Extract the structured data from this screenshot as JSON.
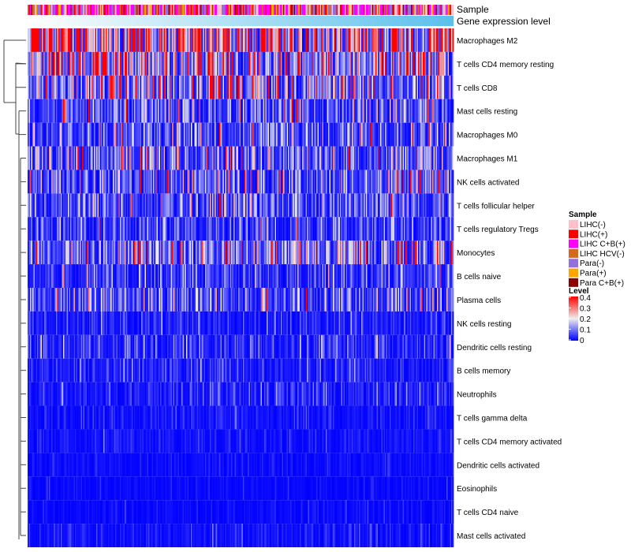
{
  "chart_data": {
    "type": "heatmap",
    "title": "",
    "annotations": [
      {
        "name": "Sample"
      },
      {
        "name": "Gene expression level",
        "color": "#5bc0eb"
      }
    ],
    "rows": [
      {
        "label": "Macrophages M2",
        "mean": 0.32
      },
      {
        "label": "T cells CD4 memory resting",
        "mean": 0.19
      },
      {
        "label": "T cells CD8",
        "mean": 0.14
      },
      {
        "label": "Mast cells resting",
        "mean": 0.08
      },
      {
        "label": "Macrophages M0",
        "mean": 0.08
      },
      {
        "label": "Macrophages M1",
        "mean": 0.11
      },
      {
        "label": "NK cells activated",
        "mean": 0.1
      },
      {
        "label": "T cells follicular helper",
        "mean": 0.08
      },
      {
        "label": "T cells regulatory  Tregs",
        "mean": 0.06
      },
      {
        "label": "Monocytes",
        "mean": 0.12
      },
      {
        "label": "B cells naive",
        "mean": 0.05
      },
      {
        "label": "Plasma cells",
        "mean": 0.08
      },
      {
        "label": "NK cells resting",
        "mean": 0.03
      },
      {
        "label": "Dendritic cells resting",
        "mean": 0.04
      },
      {
        "label": "B cells memory",
        "mean": 0.03
      },
      {
        "label": "Neutrophils",
        "mean": 0.03
      },
      {
        "label": "T cells gamma delta",
        "mean": 0.02
      },
      {
        "label": "T cells CD4 memory activated",
        "mean": 0.015
      },
      {
        "label": "Dendritic cells activated",
        "mean": 0.012
      },
      {
        "label": "Eosinophils",
        "mean": 0.01
      },
      {
        "label": "T cells CD4 naive",
        "mean": 0.01
      },
      {
        "label": "Mast cells activated",
        "mean": 0.02
      }
    ],
    "n_samples": 360,
    "legend": {
      "sample_title": "Sample",
      "samples": [
        {
          "label": "LIHC(-)",
          "color": "#ffc0cb",
          "weight": 0.2
        },
        {
          "label": "LIHC(+)",
          "color": "#ff0000",
          "weight": 0.15
        },
        {
          "label": "LIHC C+B(+)",
          "color": "#ff00ff",
          "weight": 0.3
        },
        {
          "label": "LIHC HCV(-)",
          "color": "#d2691e",
          "weight": 0.05
        },
        {
          "label": "Para(-)",
          "color": "#9370db",
          "weight": 0.15
        },
        {
          "label": "Para(+)",
          "color": "#ffa500",
          "weight": 0.1
        },
        {
          "label": "Para C+B(+)",
          "color": "#8b0000",
          "weight": 0.05
        }
      ],
      "level_title": "Level",
      "level_ticks": [
        "0.4",
        "0.3",
        "0.2",
        "0.1",
        "0"
      ],
      "level_range": [
        0,
        0.4
      ],
      "level_colors": [
        "#0000ff",
        "#eeeeee",
        "#ff0000"
      ],
      "placement": "right"
    }
  }
}
